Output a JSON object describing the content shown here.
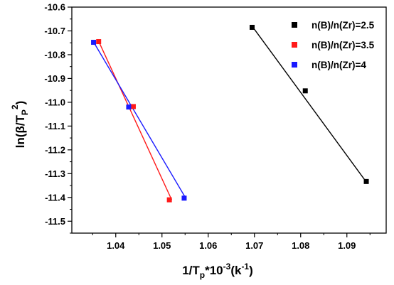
{
  "chart_data": {
    "type": "scatter",
    "xlabel_parts": {
      "main": "1/T",
      "sub": "p",
      "mid": "*10",
      "sup1": "-3",
      "unit": "(k",
      "sup2": "-1",
      "end": ")"
    },
    "ylabel_parts": {
      "main": "ln(β/T",
      "sub": "P",
      "sup": "2",
      "end": ")"
    },
    "xlim": [
      1.0305,
      1.0985
    ],
    "ylim": [
      -11.55,
      -10.6
    ],
    "xticks": [
      1.04,
      1.05,
      1.06,
      1.07,
      1.08,
      1.09
    ],
    "xtick_labels": [
      "1.04",
      "1.05",
      "1.06",
      "1.07",
      "1.08",
      "1.09"
    ],
    "yticks": [
      -10.6,
      -10.7,
      -10.8,
      -10.9,
      -11.0,
      -11.1,
      -11.2,
      -11.3,
      -11.4,
      -11.5
    ],
    "ytick_labels": [
      "-10.6",
      "-10.7",
      "-10.8",
      "-10.9",
      "-11.0",
      "-11.1",
      "-11.2",
      "-11.3",
      "-11.4",
      "-11.5"
    ],
    "grid": false,
    "legend_position": "top-right",
    "series": [
      {
        "name": "n(B)/n(Zr)=2.5",
        "color": "#000000",
        "points": [
          [
            1.0695,
            -10.685
          ],
          [
            1.081,
            -10.952
          ],
          [
            1.0942,
            -11.333
          ]
        ],
        "fit": [
          [
            1.0695,
            -10.68
          ],
          [
            1.0942,
            -11.335
          ]
        ]
      },
      {
        "name": "n(B)/n(Zr)=3.5",
        "color": "#ff1a1a",
        "points": [
          [
            1.0363,
            -10.745
          ],
          [
            1.0438,
            -11.018
          ],
          [
            1.0516,
            -11.41
          ]
        ],
        "fit": [
          [
            1.0361,
            -10.735
          ],
          [
            1.0521,
            -11.41
          ]
        ]
      },
      {
        "name": "n(B)/n(Zr)=4",
        "color": "#1a1aff",
        "points": [
          [
            1.0352,
            -10.748
          ],
          [
            1.0428,
            -11.02
          ],
          [
            1.0548,
            -11.403
          ]
        ],
        "fit": [
          [
            1.035,
            -10.74
          ],
          [
            1.0552,
            -11.405
          ]
        ]
      }
    ]
  }
}
